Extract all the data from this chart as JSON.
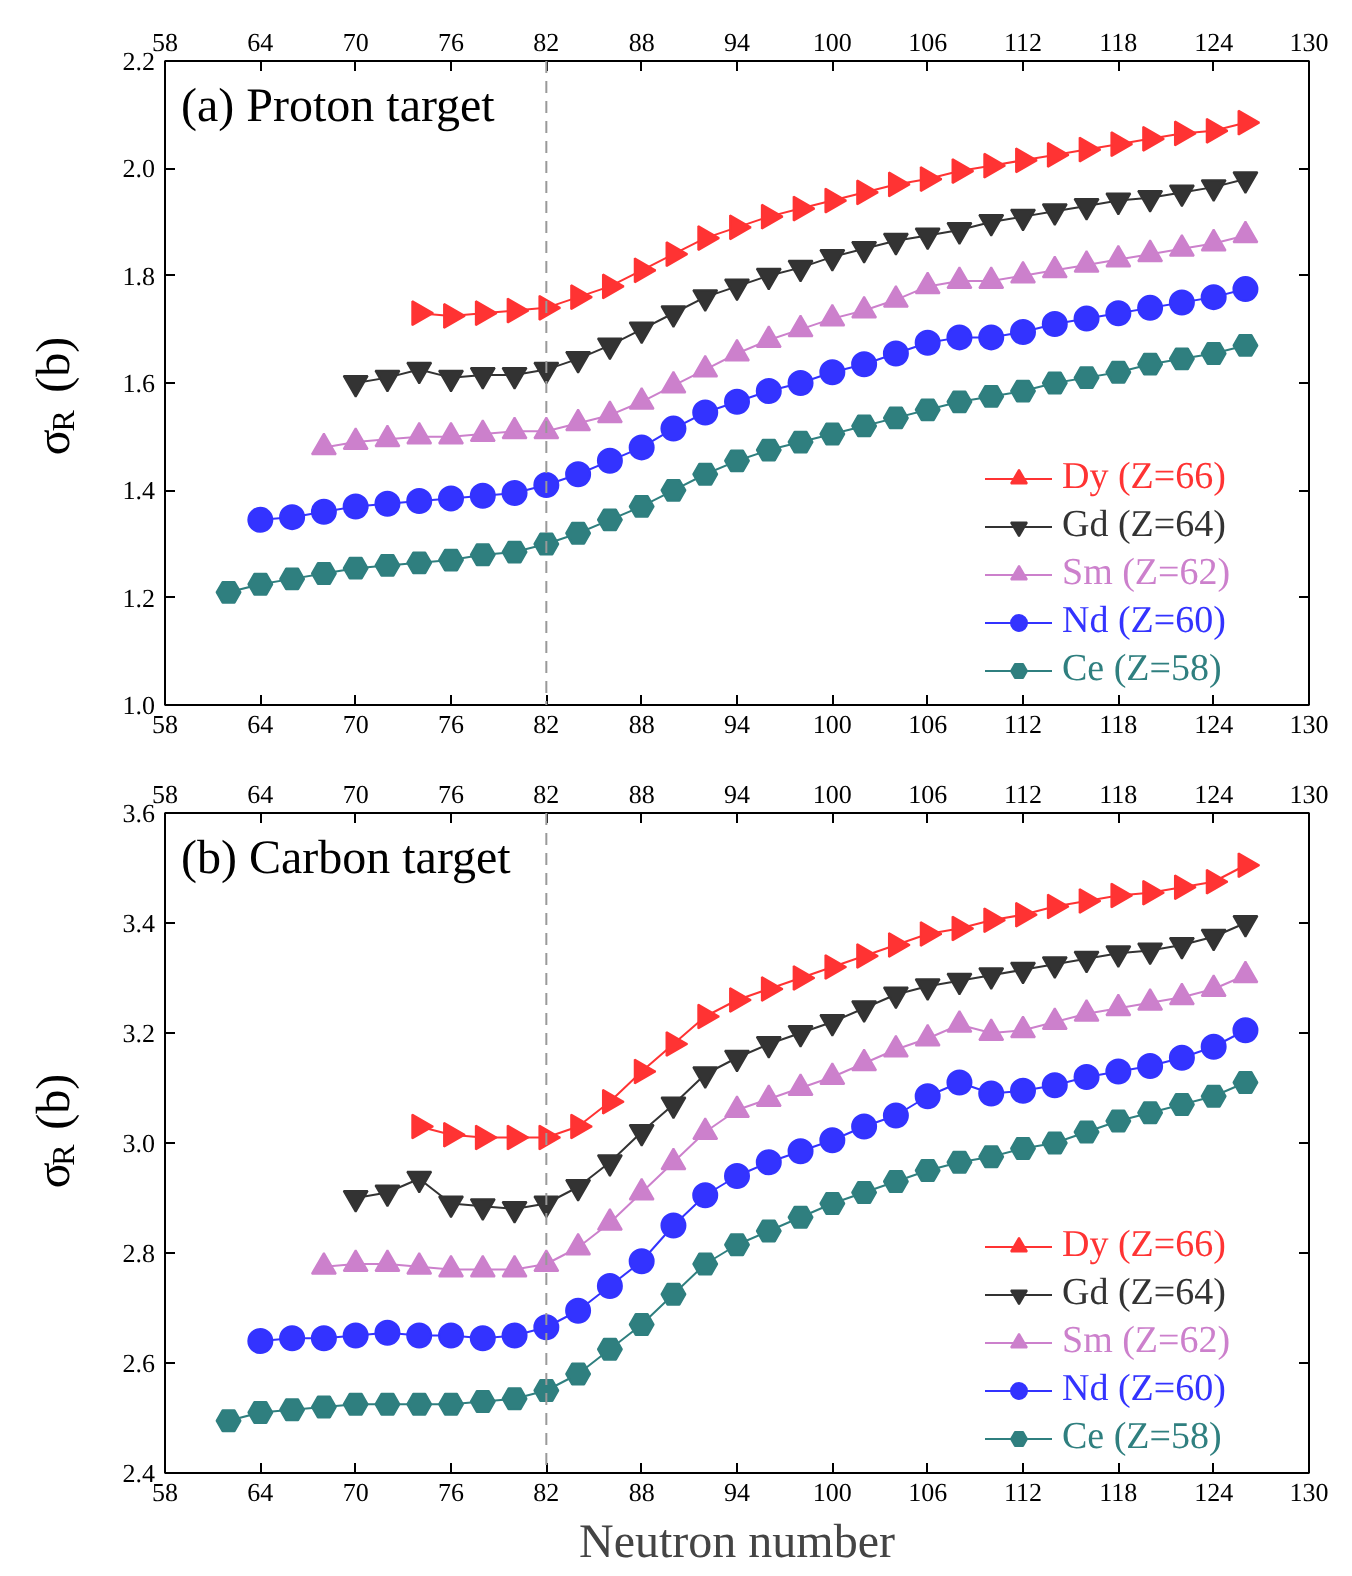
{
  "chart_data": [
    {
      "type": "line",
      "title": "(a) Proton target",
      "ylabel": "σ$_{R}$ (b)",
      "xlim": [
        58,
        130
      ],
      "xticks": [
        58,
        64,
        70,
        76,
        82,
        88,
        94,
        100,
        106,
        112,
        118,
        124,
        130
      ],
      "x2lim": [
        58,
        130
      ],
      "x2ticks": [
        58,
        64,
        70,
        76,
        82,
        88,
        94,
        100,
        106,
        112,
        118,
        124,
        130
      ],
      "ylim": [
        1.0,
        2.2
      ],
      "yticks": [
        {
          "value": 1.0,
          "label": "1.0"
        },
        1.2,
        1.4,
        1.6,
        1.8,
        {
          "value": 2.0,
          "label": "2.0"
        },
        2.2
      ],
      "legend": "bottom right",
      "grid": false,
      "ref_lines": [
        {
          "axis": "x",
          "value": 82,
          "color": "#999999",
          "line_style": "dashed"
        }
      ],
      "series": [
        {
          "name": "Dy (Z=66)",
          "color": "#ff3333",
          "marker": "triangle",
          "x": [
            74,
            76,
            78,
            80,
            82,
            84,
            86,
            88,
            90,
            92,
            94,
            96,
            98,
            100,
            102,
            104,
            106,
            108,
            110,
            112,
            114,
            116,
            118,
            120,
            122,
            124,
            126
          ],
          "values": [
            1.73,
            1.725,
            1.73,
            1.735,
            1.74,
            1.76,
            1.78,
            1.81,
            1.84,
            1.87,
            1.89,
            1.91,
            1.925,
            1.94,
            1.955,
            1.97,
            1.98,
            1.995,
            2.005,
            2.015,
            2.025,
            2.035,
            2.045,
            2.055,
            2.065,
            2.07,
            2.085
          ]
        },
        {
          "name": "Gd (Z=64)",
          "color": "#333333",
          "marker": "triangle",
          "x": [
            70,
            72,
            74,
            76,
            78,
            80,
            82,
            84,
            86,
            88,
            90,
            92,
            94,
            96,
            98,
            100,
            102,
            104,
            106,
            108,
            110,
            112,
            114,
            116,
            118,
            120,
            122,
            124,
            126
          ],
          "values": [
            1.6,
            1.61,
            1.625,
            1.61,
            1.615,
            1.615,
            1.625,
            1.645,
            1.67,
            1.7,
            1.73,
            1.76,
            1.78,
            1.8,
            1.815,
            1.835,
            1.85,
            1.865,
            1.875,
            1.885,
            1.9,
            1.91,
            1.92,
            1.93,
            1.94,
            1.945,
            1.955,
            1.965,
            1.98
          ]
        },
        {
          "name": "Sm (Z=62)",
          "color": "#cc80cc",
          "marker": "triangle",
          "x": [
            68,
            70,
            72,
            74,
            76,
            78,
            80,
            82,
            84,
            86,
            88,
            90,
            92,
            94,
            96,
            98,
            100,
            102,
            104,
            106,
            108,
            110,
            112,
            114,
            116,
            118,
            120,
            122,
            124,
            126
          ],
          "values": [
            1.48,
            1.49,
            1.495,
            1.5,
            1.5,
            1.505,
            1.51,
            1.51,
            1.525,
            1.54,
            1.565,
            1.595,
            1.625,
            1.655,
            1.68,
            1.7,
            1.72,
            1.735,
            1.755,
            1.78,
            1.79,
            1.79,
            1.8,
            1.81,
            1.82,
            1.83,
            1.84,
            1.85,
            1.86,
            1.875
          ]
        },
        {
          "name": "Nd (Z=60)",
          "color": "#3333ff",
          "marker": "circle",
          "x": [
            64,
            66,
            68,
            70,
            72,
            74,
            76,
            78,
            80,
            82,
            84,
            86,
            88,
            90,
            92,
            94,
            96,
            98,
            100,
            102,
            104,
            106,
            108,
            110,
            112,
            114,
            116,
            118,
            120,
            122,
            124,
            126
          ],
          "values": [
            1.345,
            1.35,
            1.36,
            1.37,
            1.375,
            1.38,
            1.385,
            1.39,
            1.395,
            1.41,
            1.43,
            1.455,
            1.48,
            1.515,
            1.545,
            1.565,
            1.585,
            1.6,
            1.62,
            1.635,
            1.655,
            1.675,
            1.685,
            1.685,
            1.695,
            1.71,
            1.72,
            1.73,
            1.74,
            1.75,
            1.76,
            1.775
          ]
        },
        {
          "name": "Ce (Z=58)",
          "color": "#2f7f7f",
          "marker": "circle",
          "x": [
            62,
            64,
            66,
            68,
            70,
            72,
            74,
            76,
            78,
            80,
            82,
            84,
            86,
            88,
            90,
            92,
            94,
            96,
            98,
            100,
            102,
            104,
            106,
            108,
            110,
            112,
            114,
            116,
            118,
            120,
            122,
            124,
            126
          ],
          "values": [
            1.21,
            1.225,
            1.235,
            1.245,
            1.255,
            1.26,
            1.265,
            1.27,
            1.28,
            1.285,
            1.3,
            1.32,
            1.345,
            1.37,
            1.4,
            1.43,
            1.455,
            1.475,
            1.49,
            1.505,
            1.52,
            1.535,
            1.55,
            1.565,
            1.575,
            1.585,
            1.6,
            1.61,
            1.62,
            1.635,
            1.645,
            1.655,
            1.67
          ]
        }
      ]
    },
    {
      "type": "line",
      "title": "(b) Carbon target",
      "ylabel": "σ$_{R}$ (b)",
      "xlabel": "Neutron number",
      "xlim": [
        58,
        130
      ],
      "xticks": [
        58,
        64,
        70,
        76,
        82,
        88,
        94,
        100,
        106,
        112,
        118,
        124,
        130
      ],
      "x2lim": [
        58,
        130
      ],
      "x2ticks": [
        58,
        64,
        70,
        76,
        82,
        88,
        94,
        100,
        106,
        112,
        118,
        124,
        130
      ],
      "ylim": [
        2.4,
        3.6
      ],
      "yticks": [
        2.4,
        2.6,
        2.8,
        {
          "value": 3.0,
          "label": "3.0"
        },
        3.2,
        3.4,
        3.6
      ],
      "legend": "bottom right",
      "grid": false,
      "ref_lines": [
        {
          "axis": "x",
          "value": 82,
          "color": "#999999",
          "line_style": "dashed"
        }
      ],
      "series": [
        {
          "name": "Dy (Z=66)",
          "color": "#ff3333",
          "marker": "triangle",
          "x": [
            74,
            76,
            78,
            80,
            82,
            84,
            86,
            88,
            90,
            92,
            94,
            96,
            98,
            100,
            102,
            104,
            106,
            108,
            110,
            112,
            114,
            116,
            118,
            120,
            122,
            124,
            126
          ],
          "values": [
            3.03,
            3.015,
            3.01,
            3.01,
            3.01,
            3.03,
            3.075,
            3.13,
            3.18,
            3.23,
            3.26,
            3.28,
            3.3,
            3.32,
            3.34,
            3.36,
            3.38,
            3.39,
            3.405,
            3.415,
            3.43,
            3.44,
            3.45,
            3.455,
            3.465,
            3.475,
            3.505
          ]
        },
        {
          "name": "Gd (Z=64)",
          "color": "#333333",
          "marker": "triangle",
          "x": [
            70,
            72,
            74,
            76,
            78,
            80,
            82,
            84,
            86,
            88,
            90,
            92,
            94,
            96,
            98,
            100,
            102,
            104,
            106,
            108,
            110,
            112,
            114,
            116,
            118,
            120,
            122,
            124,
            126
          ],
          "values": [
            2.9,
            2.91,
            2.935,
            2.89,
            2.885,
            2.88,
            2.89,
            2.92,
            2.965,
            3.02,
            3.07,
            3.125,
            3.155,
            3.18,
            3.2,
            3.22,
            3.245,
            3.27,
            3.285,
            3.295,
            3.305,
            3.315,
            3.325,
            3.335,
            3.345,
            3.35,
            3.36,
            3.375,
            3.4
          ]
        },
        {
          "name": "Sm (Z=62)",
          "color": "#cc80cc",
          "marker": "triangle",
          "x": [
            68,
            70,
            72,
            74,
            76,
            78,
            80,
            82,
            84,
            86,
            88,
            90,
            92,
            94,
            96,
            98,
            100,
            102,
            104,
            106,
            108,
            110,
            112,
            114,
            116,
            118,
            120,
            122,
            124,
            126
          ],
          "values": [
            2.775,
            2.78,
            2.78,
            2.775,
            2.77,
            2.77,
            2.77,
            2.78,
            2.81,
            2.855,
            2.91,
            2.965,
            3.02,
            3.06,
            3.08,
            3.1,
            3.12,
            3.145,
            3.17,
            3.19,
            3.215,
            3.2,
            3.205,
            3.22,
            3.235,
            3.245,
            3.255,
            3.265,
            3.28,
            3.305
          ]
        },
        {
          "name": "Nd (Z=60)",
          "color": "#3333ff",
          "marker": "circle",
          "x": [
            64,
            66,
            68,
            70,
            72,
            74,
            76,
            78,
            80,
            82,
            84,
            86,
            88,
            90,
            92,
            94,
            96,
            98,
            100,
            102,
            104,
            106,
            108,
            110,
            112,
            114,
            116,
            118,
            120,
            122,
            124,
            126
          ],
          "values": [
            2.64,
            2.645,
            2.645,
            2.65,
            2.655,
            2.65,
            2.65,
            2.645,
            2.65,
            2.665,
            2.695,
            2.74,
            2.785,
            2.85,
            2.905,
            2.94,
            2.965,
            2.985,
            3.005,
            3.03,
            3.05,
            3.085,
            3.11,
            3.09,
            3.095,
            3.105,
            3.12,
            3.13,
            3.14,
            3.155,
            3.175,
            3.205
          ]
        },
        {
          "name": "Ce (Z=58)",
          "color": "#2f7f7f",
          "marker": "circle",
          "x": [
            62,
            64,
            66,
            68,
            70,
            72,
            74,
            76,
            78,
            80,
            82,
            84,
            86,
            88,
            90,
            92,
            94,
            96,
            98,
            100,
            102,
            104,
            106,
            108,
            110,
            112,
            114,
            116,
            118,
            120,
            122,
            124,
            126
          ],
          "values": [
            2.495,
            2.51,
            2.515,
            2.52,
            2.525,
            2.525,
            2.525,
            2.525,
            2.53,
            2.535,
            2.55,
            2.58,
            2.625,
            2.67,
            2.725,
            2.78,
            2.815,
            2.84,
            2.865,
            2.89,
            2.91,
            2.93,
            2.95,
            2.965,
            2.975,
            2.99,
            3.0,
            3.02,
            3.04,
            3.055,
            3.07,
            3.085,
            3.11
          ]
        }
      ]
    }
  ]
}
